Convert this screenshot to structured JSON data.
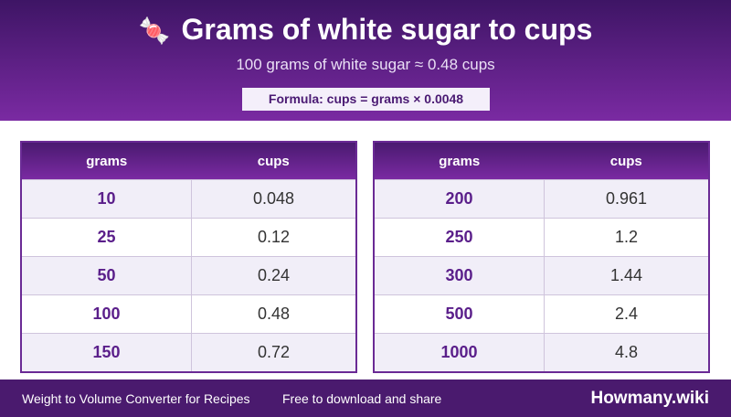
{
  "header": {
    "icon": "🍬",
    "title": "Grams of white sugar to cups",
    "subtitle": "100 grams of white sugar ≈ 0.48 cups",
    "formula": "Formula: cups = grams × 0.0048"
  },
  "tables": [
    {
      "columns": [
        "grams",
        "cups"
      ],
      "rows": [
        [
          "10",
          "0.048"
        ],
        [
          "25",
          "0.12"
        ],
        [
          "50",
          "0.24"
        ],
        [
          "100",
          "0.48"
        ],
        [
          "150",
          "0.72"
        ]
      ]
    },
    {
      "columns": [
        "grams",
        "cups"
      ],
      "rows": [
        [
          "200",
          "0.961"
        ],
        [
          "250",
          "1.2"
        ],
        [
          "300",
          "1.44"
        ],
        [
          "500",
          "2.4"
        ],
        [
          "1000",
          "4.8"
        ]
      ]
    }
  ],
  "footer": {
    "left": "Weight to Volume Converter for Recipes",
    "middle": "Free to download and share",
    "brand": "Howmany.wiki"
  }
}
